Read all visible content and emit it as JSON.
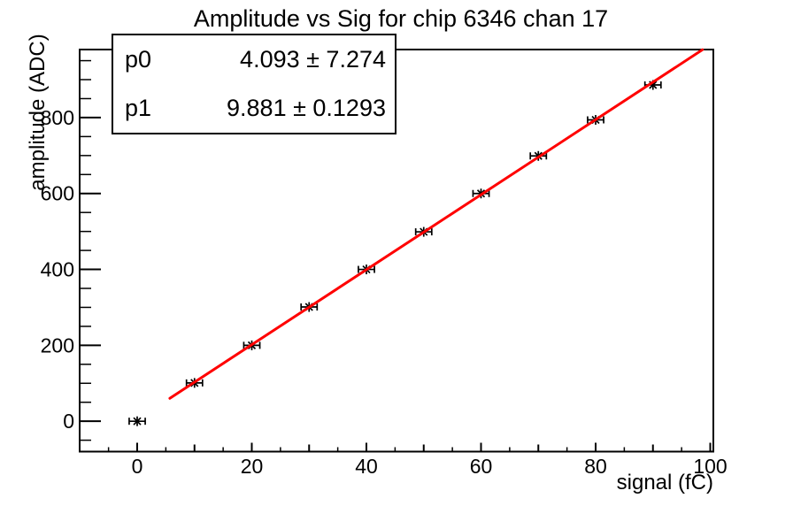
{
  "title": "Amplitude vs Sig for chip 6346 chan 17",
  "stats_box": {
    "rows": [
      {
        "name": "p0",
        "value": "4.093 ± 7.274"
      },
      {
        "name": "p1",
        "value": "9.881 ± 0.1293"
      }
    ]
  },
  "chart_data": {
    "type": "scatter",
    "title": "Amplitude vs Sig for chip 6346 chan 17",
    "xlabel": "signal (fC)",
    "ylabel": "amplitude (ADC)",
    "xlim": [
      -10.04,
      100.54
    ],
    "ylim": [
      -80,
      979.3
    ],
    "x": [
      0,
      10,
      20,
      30,
      40,
      50,
      60,
      70,
      80,
      90
    ],
    "y": [
      0,
      101,
      200,
      301,
      400,
      499,
      600,
      699,
      794,
      886
    ],
    "xerr": 1.4,
    "x_major_ticks": [
      0,
      20,
      40,
      60,
      80,
      100
    ],
    "x_medium_ticks": [
      10,
      30,
      50,
      70,
      90
    ],
    "x_minor_ticks": [
      -5,
      5,
      15,
      25,
      35,
      45,
      55,
      65,
      75,
      85,
      95
    ],
    "y_major_ticks": [
      0,
      200,
      400,
      600,
      800
    ],
    "y_minor_ticks": [
      -50,
      50,
      100,
      150,
      250,
      300,
      350,
      450,
      500,
      550,
      650,
      700,
      750,
      850,
      900,
      950
    ],
    "fit": {
      "p0": 4.093,
      "p1": 9.881,
      "range": [
        5.7,
        98.66
      ],
      "color": "#ff0000"
    },
    "marker_color": "#000000",
    "frame_color": "#000000",
    "background_color": "#ffffff",
    "grid": false,
    "legend_position": "none"
  }
}
